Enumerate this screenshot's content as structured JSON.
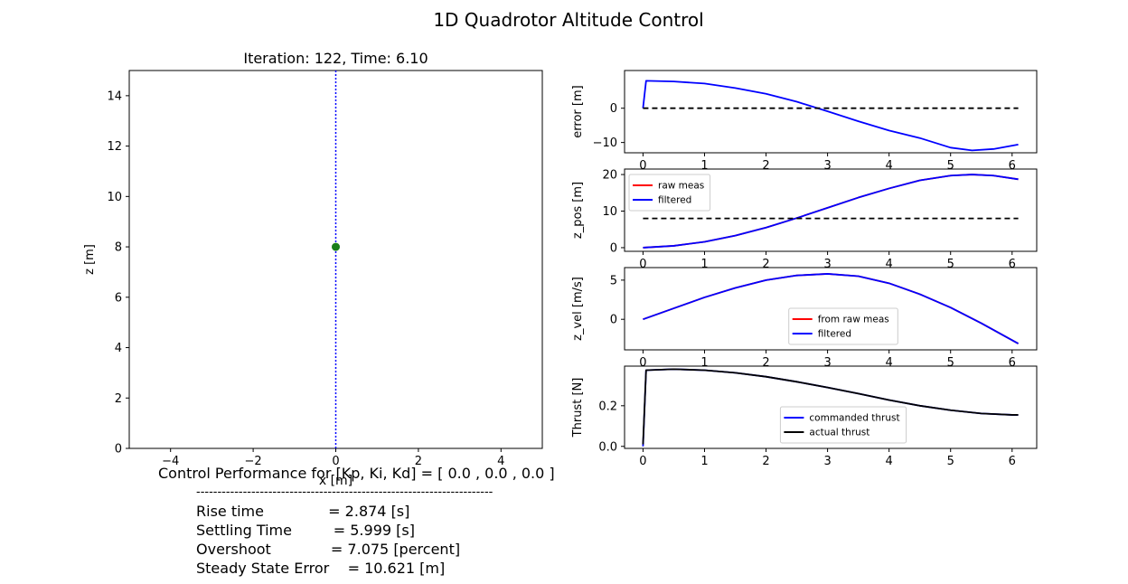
{
  "figure_title": "1D Quadrotor Altitude Control",
  "performance": {
    "header": "Control Performance for [Kp, Ki, Kd] = [ 0.0 , 0.0 , 0.0 ]",
    "separator": "----------------------------------------------------------------------",
    "rise_time": "Rise time              = 2.874 [s]",
    "settling_time": "Settling Time         = 5.999 [s]",
    "overshoot": "Overshoot             = 7.075 [percent]",
    "steady_state_error": "Steady State Error    = 10.621 [m]"
  },
  "chart_data": [
    {
      "type": "scatter",
      "title": "Iteration: 122, Time: 6.10",
      "xlabel": "x [m]",
      "ylabel": "z [m]",
      "xlim": [
        -5,
        5
      ],
      "ylim": [
        0,
        15
      ],
      "xticks": [
        -4,
        -2,
        0,
        2,
        4
      ],
      "xtick_labels": [
        "−4",
        "−2",
        "0",
        "2",
        "4"
      ],
      "yticks": [
        0,
        2,
        4,
        6,
        8,
        10,
        12,
        14
      ],
      "ytick_labels": [
        "0",
        "2",
        "4",
        "6",
        "8",
        "10",
        "12",
        "14"
      ],
      "points": [
        {
          "x": 0,
          "y": 8,
          "color": "#1a7f1a"
        }
      ],
      "vline": {
        "x": 0,
        "color": "#0000ff",
        "style": "dotted"
      }
    },
    {
      "type": "line",
      "ylabel": "error [m]",
      "xlim": [
        -0.3,
        6.4
      ],
      "ylim": [
        -13,
        11
      ],
      "xticks": [
        0,
        1,
        2,
        3,
        4,
        5,
        6
      ],
      "yticks": [
        -10,
        0
      ],
      "ytick_labels": [
        "−10",
        "0"
      ],
      "series": [
        {
          "color": "#0000ff",
          "x": [
            0,
            0.05,
            0.5,
            1.0,
            1.5,
            2.0,
            2.5,
            3.0,
            3.5,
            4.0,
            4.5,
            5.0,
            5.35,
            5.7,
            6.1
          ],
          "y": [
            0,
            8,
            7.8,
            7.2,
            5.9,
            4.2,
            1.9,
            -0.9,
            -3.8,
            -6.5,
            -8.7,
            -11.5,
            -12.3,
            -11.9,
            -10.6
          ]
        },
        {
          "color": "#000000",
          "style": "dashed",
          "x": [
            0,
            6.1
          ],
          "y": [
            0,
            0
          ]
        }
      ]
    },
    {
      "type": "line",
      "ylabel": "z_pos [m]",
      "xlim": [
        -0.3,
        6.4
      ],
      "ylim": [
        -1,
        21.5
      ],
      "xticks": [
        0,
        1,
        2,
        3,
        4,
        5,
        6
      ],
      "yticks": [
        0,
        10,
        20
      ],
      "legend": {
        "position": "upper-left",
        "entries": [
          {
            "label": "raw meas",
            "color": "#ff0000"
          },
          {
            "label": "filtered",
            "color": "#0000ff"
          }
        ]
      },
      "series": [
        {
          "color": "#ff0000",
          "x": [
            0,
            0.5,
            1.0,
            1.5,
            2.0,
            2.5,
            3.0,
            3.5,
            4.0,
            4.5,
            5.0,
            5.35,
            5.7,
            6.1
          ],
          "y": [
            0,
            0.5,
            1.6,
            3.3,
            5.5,
            8.1,
            10.9,
            13.7,
            16.2,
            18.4,
            19.7,
            20.0,
            19.7,
            18.7
          ]
        },
        {
          "color": "#0000ff",
          "x": [
            0,
            0.5,
            1.0,
            1.5,
            2.0,
            2.5,
            3.0,
            3.5,
            4.0,
            4.5,
            5.0,
            5.35,
            5.7,
            6.1
          ],
          "y": [
            0,
            0.5,
            1.6,
            3.3,
            5.5,
            8.1,
            10.9,
            13.7,
            16.2,
            18.4,
            19.7,
            20.0,
            19.7,
            18.7
          ]
        },
        {
          "color": "#000000",
          "style": "dashed",
          "x": [
            0,
            6.1
          ],
          "y": [
            8,
            8
          ]
        }
      ]
    },
    {
      "type": "line",
      "ylabel": "z_vel [m/s]",
      "xlim": [
        -0.3,
        6.4
      ],
      "ylim": [
        -3.9,
        6.6
      ],
      "xticks": [
        0,
        1,
        2,
        3,
        4,
        5,
        6
      ],
      "yticks": [
        0,
        5
      ],
      "legend": {
        "position": "lower-center",
        "entries": [
          {
            "label": "from raw meas",
            "color": "#ff0000"
          },
          {
            "label": "filtered",
            "color": "#0000ff"
          }
        ]
      },
      "series": [
        {
          "color": "#ff0000",
          "x": [
            0,
            0.5,
            1.0,
            1.5,
            2.0,
            2.5,
            3.0,
            3.5,
            4.0,
            4.5,
            5.0,
            5.5,
            6.1
          ],
          "y": [
            0,
            1.4,
            2.8,
            4.0,
            5.0,
            5.6,
            5.8,
            5.5,
            4.6,
            3.2,
            1.5,
            -0.5,
            -3.1
          ]
        },
        {
          "color": "#0000ff",
          "x": [
            0,
            0.5,
            1.0,
            1.5,
            2.0,
            2.5,
            3.0,
            3.5,
            4.0,
            4.5,
            5.0,
            5.5,
            6.1
          ],
          "y": [
            0,
            1.4,
            2.8,
            4.0,
            5.0,
            5.6,
            5.8,
            5.5,
            4.6,
            3.2,
            1.5,
            -0.5,
            -3.1
          ]
        }
      ]
    },
    {
      "type": "line",
      "ylabel": "Thrust [N]",
      "xlim": [
        -0.3,
        6.4
      ],
      "ylim": [
        -0.01,
        0.395
      ],
      "xticks": [
        0,
        1,
        2,
        3,
        4,
        5,
        6
      ],
      "yticks": [
        0.0,
        0.2
      ],
      "ytick_labels": [
        "0.0",
        "0.2"
      ],
      "legend": {
        "position": "lower-center",
        "entries": [
          {
            "label": "commanded thrust",
            "color": "#0000ff"
          },
          {
            "label": "actual thrust",
            "color": "#000000"
          }
        ]
      },
      "series": [
        {
          "color": "#0000ff",
          "x": [
            0,
            0.05,
            0.5,
            1.0,
            1.5,
            2.0,
            2.5,
            3.0,
            3.5,
            4.0,
            4.5,
            5.0,
            5.5,
            6.0,
            6.1
          ],
          "y": [
            0,
            0.375,
            0.38,
            0.375,
            0.362,
            0.343,
            0.318,
            0.29,
            0.26,
            0.228,
            0.2,
            0.178,
            0.162,
            0.155,
            0.155
          ]
        },
        {
          "color": "#000000",
          "x": [
            0,
            0.05,
            0.5,
            1.0,
            1.5,
            2.0,
            2.5,
            3.0,
            3.5,
            4.0,
            4.5,
            5.0,
            5.5,
            6.0,
            6.1
          ],
          "y": [
            0.01,
            0.375,
            0.38,
            0.375,
            0.362,
            0.343,
            0.318,
            0.29,
            0.26,
            0.228,
            0.2,
            0.178,
            0.162,
            0.155,
            0.155
          ]
        }
      ]
    }
  ]
}
